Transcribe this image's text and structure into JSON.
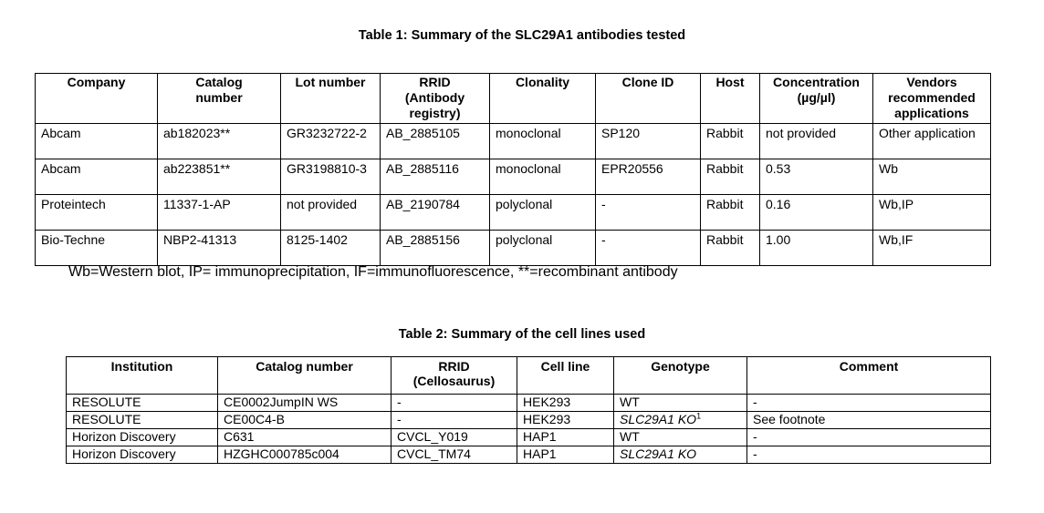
{
  "table1": {
    "caption": "Table 1: Summary of the SLC29A1 antibodies tested",
    "headers": [
      "Company",
      "Catalog number",
      "Lot number",
      "RRID (Antibody registry)",
      "Clonality",
      "Clone ID",
      "Host",
      "Concentration (µg/µl)",
      "Vendors recommended applications"
    ],
    "header_lines": {
      "catalog": [
        "Catalog",
        "number"
      ],
      "rrid": [
        "RRID",
        "(Antibody",
        "registry)"
      ],
      "concentration": [
        "Concentration",
        "(µg/µl)"
      ],
      "vendors": [
        "Vendors",
        "recommended",
        "applications"
      ]
    },
    "rows": [
      {
        "company": "Abcam",
        "catalog": "ab182023**",
        "lot": "GR3232722-2",
        "rrid": "AB_2885105",
        "clonality": "monoclonal",
        "clone_id": "SP120",
        "host": "Rabbit",
        "concentration": "not provided",
        "applications": "Other application"
      },
      {
        "company": "Abcam",
        "catalog": "ab223851**",
        "lot": "GR3198810-3",
        "rrid": "AB_2885116",
        "clonality": "monoclonal",
        "clone_id": "EPR20556",
        "host": "Rabbit",
        "concentration": "0.53",
        "applications": "Wb"
      },
      {
        "company": "Proteintech",
        "catalog": "11337-1-AP",
        "lot": "not provided",
        "rrid": "AB_2190784",
        "clonality": "polyclonal",
        "clone_id": "-",
        "host": "Rabbit",
        "concentration": "0.16",
        "applications": "Wb,IP"
      },
      {
        "company": "Bio-Techne",
        "catalog": "NBP2-41313",
        "lot": "8125-1402",
        "rrid": "AB_2885156",
        "clonality": "polyclonal",
        "clone_id": "-",
        "host": "Rabbit",
        "concentration": "1.00",
        "applications": "Wb,IF"
      }
    ],
    "footnote": "Wb=Western blot, IP= immunoprecipitation, IF=immunofluorescence, **=recombinant antibody"
  },
  "table2": {
    "caption": "Table 2: Summary of the cell lines used",
    "headers": [
      "Institution",
      "Catalog number",
      "RRID (Cellosaurus)",
      "Cell line",
      "Genotype",
      "Comment"
    ],
    "header_lines": {
      "rrid": [
        "RRID",
        "(Cellosaurus)"
      ]
    },
    "rows": [
      {
        "institution": "RESOLUTE",
        "catalog": "CE0002JumpIN WS",
        "rrid": "-",
        "cell_line": "HEK293",
        "genotype": "WT",
        "genotype_sup": "",
        "comment": "-"
      },
      {
        "institution": "RESOLUTE",
        "catalog": "CE00C4-B",
        "rrid": "-",
        "cell_line": "HEK293",
        "genotype": "SLC29A1 KO",
        "genotype_sup": "1",
        "comment": "See footnote"
      },
      {
        "institution": "Horizon Discovery",
        "catalog": "C631",
        "rrid": "CVCL_Y019",
        "cell_line": "HAP1",
        "genotype": "WT",
        "genotype_sup": "",
        "comment": "-"
      },
      {
        "institution": "Horizon Discovery",
        "catalog": "HZGHC000785c004",
        "rrid": "CVCL_TM74",
        "cell_line": "HAP1",
        "genotype": "SLC29A1 KO",
        "genotype_sup": "",
        "comment": "-"
      }
    ]
  }
}
